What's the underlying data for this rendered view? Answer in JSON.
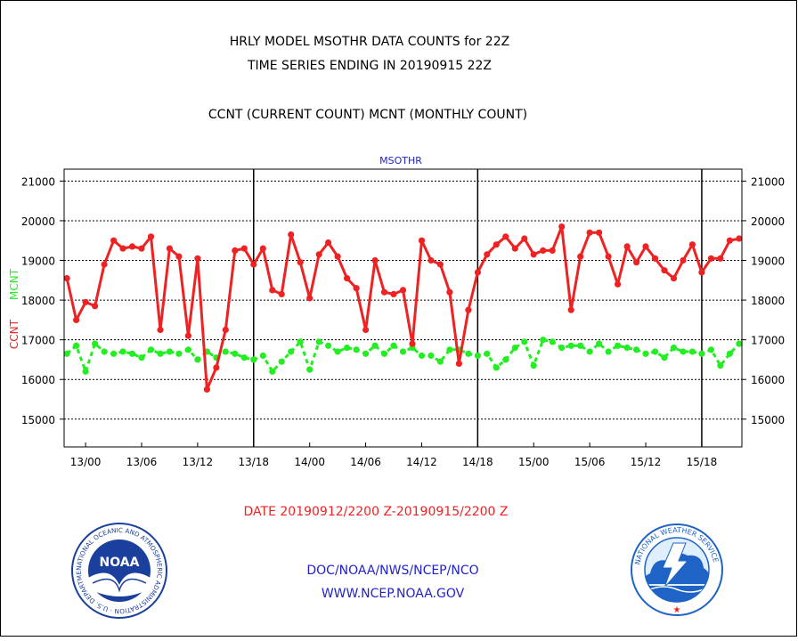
{
  "title": {
    "line1": "HRLY MODEL MSOTHR DATA COUNTS for 22Z",
    "line2": "TIME SERIES ENDING IN 20190915 22Z",
    "line3": "CCNT (CURRENT COUNT) MCNT (MONTHLY COUNT)"
  },
  "footer": {
    "date_range": "DATE 20190912/2200 Z-20190915/2200 Z",
    "org": "DOC/NOAA/NWS/NCEP/NCO",
    "url": "WWW.NCEP.NOAA.GOV"
  },
  "logos": {
    "noaa_text": "NOAA",
    "noaa_ring": "NATIONAL OCEANIC AND ATMOSPHERIC ADMINISTRATION · U.S. DEPARTMENT OF COMMERCE ·",
    "nws_ring": "NATIONAL WEATHER SERVICE"
  },
  "colors": {
    "ccnt": "#ee2222",
    "mcnt": "#22ee22",
    "title_text": "#000000",
    "date_text": "#ee2222",
    "footer_text": "#2222cc",
    "axis_title": "#2222cc",
    "noaa_blue": "#1a3f9c",
    "nws_blue": "#1f63c6"
  },
  "chart_data": {
    "type": "line",
    "title": "MSOTHR",
    "ylabel_left": [
      "CCNT",
      "MCNT"
    ],
    "ylim": [
      14300,
      21300
    ],
    "yticks": [
      15000,
      16000,
      17000,
      18000,
      19000,
      20000,
      21000
    ],
    "ytick_labels": [
      "15000",
      "16000",
      "17000",
      "18000",
      "19000",
      "20000",
      "21000"
    ],
    "xlim": [
      -0.3,
      72.3
    ],
    "xticks": [
      2,
      8,
      14,
      20,
      26,
      32,
      38,
      44,
      50,
      56,
      62,
      68
    ],
    "xtick_labels": [
      "13/00",
      "13/06",
      "13/12",
      "13/18",
      "14/00",
      "14/06",
      "14/12",
      "14/18",
      "15/00",
      "15/06",
      "15/12",
      "15/18"
    ],
    "day_boundaries": [
      20,
      44,
      68
    ],
    "grid": true,
    "x": [
      0,
      1,
      2,
      3,
      4,
      5,
      6,
      7,
      8,
      9,
      10,
      11,
      12,
      13,
      14,
      15,
      16,
      17,
      18,
      19,
      20,
      21,
      22,
      23,
      24,
      25,
      26,
      27,
      28,
      29,
      30,
      31,
      32,
      33,
      34,
      35,
      36,
      37,
      38,
      39,
      40,
      41,
      42,
      43,
      44,
      45,
      46,
      47,
      48,
      49,
      50,
      51,
      52,
      53,
      54,
      55,
      56,
      57,
      58,
      59,
      60,
      61,
      62,
      63,
      64,
      65,
      66,
      67,
      68,
      69,
      70,
      71,
      72
    ],
    "series": [
      {
        "name": "CCNT",
        "values": [
          18550,
          17500,
          17950,
          17850,
          18900,
          19500,
          19300,
          19350,
          19300,
          19600,
          17250,
          19300,
          19100,
          17100,
          19050,
          15750,
          16300,
          17250,
          19250,
          19300,
          18900,
          19300,
          18250,
          18150,
          19650,
          18950,
          18050,
          19150,
          19450,
          19100,
          18550,
          18300,
          17250,
          19000,
          18200,
          18150,
          18250,
          16900,
          19500,
          19000,
          18900,
          18200,
          16400,
          17750,
          18700,
          19150,
          19400,
          19600,
          19300,
          19550,
          19150,
          19250,
          19250,
          19850,
          17750,
          19100,
          19700,
          19700,
          19100,
          18400,
          19350,
          18950,
          19350,
          19050,
          18750,
          18550,
          19000,
          19400,
          18700,
          19050,
          19050,
          19500,
          19550
        ]
      },
      {
        "name": "MCNT",
        "values": [
          16650,
          16850,
          16200,
          16900,
          16700,
          16650,
          16700,
          16650,
          16550,
          16750,
          16650,
          16700,
          16650,
          16750,
          16500,
          16700,
          16550,
          16700,
          16650,
          16550,
          16500,
          16600,
          16200,
          16450,
          16700,
          16950,
          16250,
          16950,
          16850,
          16700,
          16800,
          16750,
          16650,
          16850,
          16650,
          16850,
          16700,
          16800,
          16600,
          16600,
          16450,
          16750,
          16750,
          16650,
          16600,
          16650,
          16300,
          16500,
          16800,
          16950,
          16350,
          17000,
          16950,
          16800,
          16850,
          16850,
          16700,
          16900,
          16700,
          16850,
          16800,
          16750,
          16650,
          16700,
          16550,
          16800,
          16700,
          16700,
          16650,
          16750,
          16350,
          16650,
          16900
        ]
      }
    ]
  }
}
